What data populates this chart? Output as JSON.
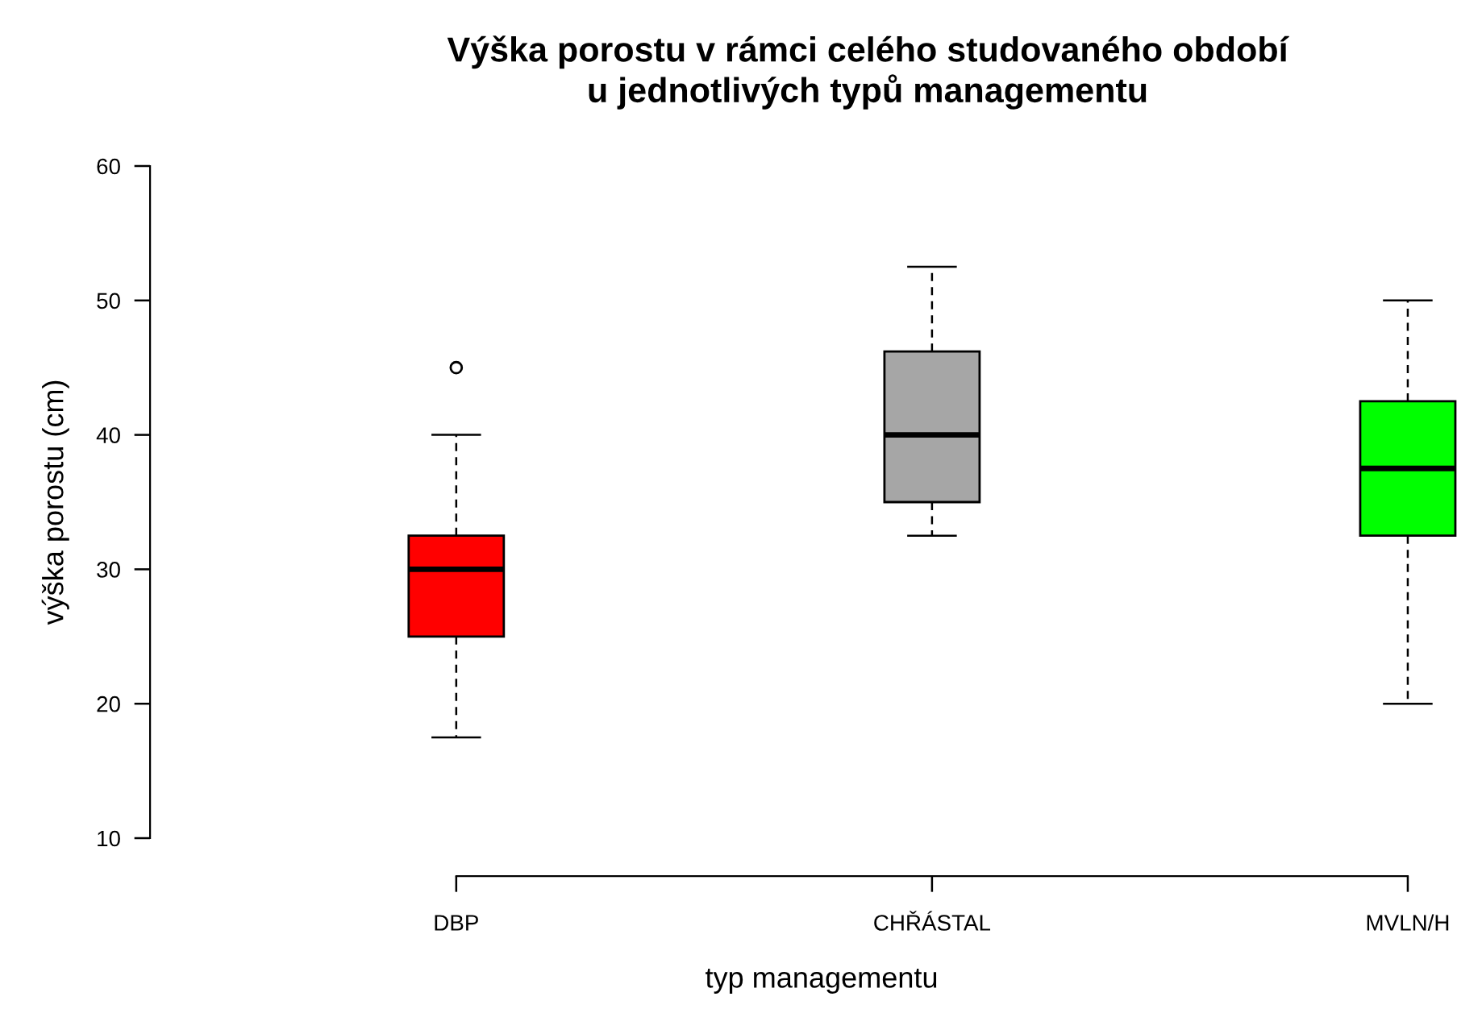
{
  "chart_data": {
    "type": "box",
    "title": "Výška porostu v rámci celého studovaného období\nu jednotlivých typů managementu",
    "xlabel": "typ managementu",
    "ylabel": "výška porostu (cm)",
    "categories": [
      "DBP",
      "CHŘÁSTAL",
      "MVLN/H"
    ],
    "colors": [
      "#ff0000",
      "#a6a6a6",
      "#00ff00"
    ],
    "boxes": [
      {
        "low": 17.5,
        "q1": 25,
        "median": 30,
        "q3": 32.5,
        "high": 40,
        "outliers": [
          45
        ]
      },
      {
        "low": 32.5,
        "q1": 35,
        "median": 40,
        "q3": 46.2,
        "high": 52.5
      },
      {
        "low": 20,
        "q1": 32.5,
        "median": 37.5,
        "q3": 42.5,
        "high": 50
      }
    ],
    "ylim": [
      10,
      60
    ],
    "yticks": [
      10,
      20,
      30,
      40,
      50,
      60
    ],
    "grid": false
  }
}
